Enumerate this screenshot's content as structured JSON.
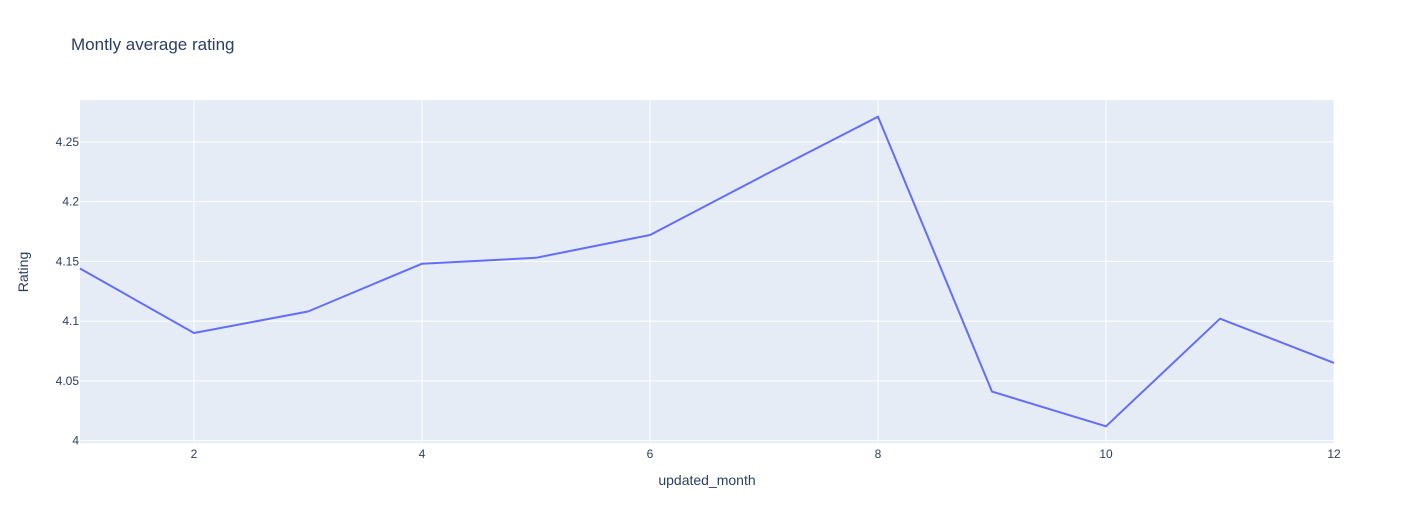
{
  "chart_data": {
    "type": "line",
    "title": "Montly average rating",
    "xlabel": "updated_month",
    "ylabel": "Rating",
    "xlim": [
      1,
      12
    ],
    "ylim": [
      3.998,
      4.285
    ],
    "xticks": [
      2,
      4,
      6,
      8,
      10,
      12
    ],
    "xtick_labels": [
      "2",
      "4",
      "6",
      "8",
      "10",
      "12"
    ],
    "yticks": [
      4,
      4.05,
      4.1,
      4.15,
      4.2,
      4.25
    ],
    "ytick_labels": [
      "4",
      "4.05",
      "4.1",
      "4.15",
      "4.2",
      "4.25"
    ],
    "grid": true,
    "series": [
      {
        "x": [
          1,
          2,
          3,
          4,
          5,
          6,
          7,
          8,
          9,
          10,
          11,
          12
        ],
        "values": [
          4.144,
          4.09,
          4.108,
          4.148,
          4.153,
          4.172,
          4.222,
          4.271,
          4.041,
          4.012,
          4.102,
          4.065
        ],
        "color": "#636efa"
      }
    ]
  },
  "colors": {
    "plot_bg": "#e5ecf6",
    "grid": "#ffffff",
    "line": "#636efa",
    "text": "#2a3f5f"
  }
}
